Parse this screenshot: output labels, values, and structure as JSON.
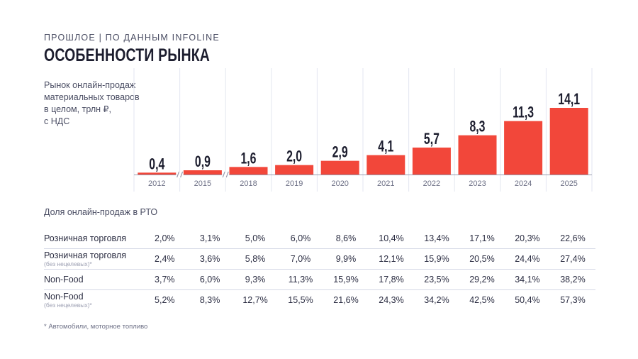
{
  "header": {
    "kicker": "ПРОШЛОЕ | ПО ДАННЫМ INFOLINE",
    "title": "ОСОБЕННОСТИ РЫНКА"
  },
  "colors": {
    "bar": "#f2473a",
    "grid": "#e3e6f0",
    "axis": "#9a9db0"
  },
  "chart_data": {
    "type": "bar",
    "title": "Рынок онлайн-продаж материальных товаров в целом, трлн ₽, с НДС",
    "title_lines": [
      "Рынок онлайн-продаж",
      "материальных товаров",
      "в целом, трлн ₽,",
      "с НДС"
    ],
    "categories": [
      "2012",
      "2015",
      "2018",
      "2019",
      "2020",
      "2021",
      "2022",
      "2023",
      "2024",
      "2025"
    ],
    "values": [
      0.4,
      0.9,
      1.6,
      2.0,
      2.9,
      4.1,
      5.7,
      8.3,
      11.3,
      14.1
    ],
    "value_labels": [
      "0,4",
      "0,9",
      "1,6",
      "2,0",
      "2,9",
      "4,1",
      "5,7",
      "8,3",
      "11,3",
      "14,1"
    ],
    "ylim": [
      0,
      14.1
    ],
    "axis_breaks_after": [
      "2012",
      "2015"
    ],
    "grid": true
  },
  "table": {
    "title": "Доля онлайн-продаж в РТО",
    "rows": [
      {
        "label": "Розничная торговля",
        "sub": "",
        "values": [
          "2,0%",
          "3,1%",
          "5,0%",
          "6,0%",
          "8,6%",
          "10,4%",
          "13,4%",
          "17,1%",
          "20,3%",
          "22,6%"
        ]
      },
      {
        "label": "Розничная торговля",
        "sub": "(без нецелевых)*",
        "values": [
          "2,4%",
          "3,6%",
          "5,8%",
          "7,0%",
          "9,9%",
          "12,1%",
          "15,9%",
          "20,5%",
          "24,4%",
          "27,4%"
        ]
      },
      {
        "label": "Non-Food",
        "sub": "",
        "values": [
          "3,7%",
          "6,0%",
          "9,3%",
          "11,3%",
          "15,9%",
          "17,8%",
          "23,5%",
          "29,2%",
          "34,1%",
          "38,2%"
        ]
      },
      {
        "label": "Non-Food",
        "sub": "(без нецелевых)*",
        "values": [
          "5,2%",
          "8,3%",
          "12,7%",
          "15,5%",
          "21,6%",
          "24,3%",
          "34,2%",
          "42,5%",
          "50,4%",
          "57,3%"
        ]
      }
    ]
  },
  "footnote": "* Автомобили, моторное топливо"
}
